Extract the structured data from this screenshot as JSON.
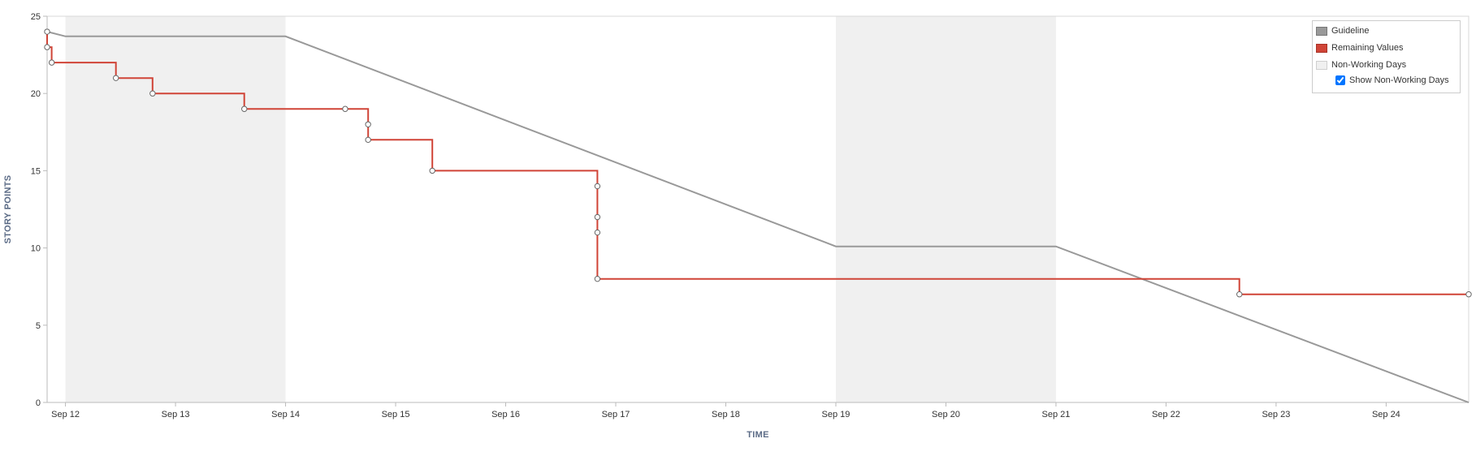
{
  "chart_data": {
    "type": "line",
    "xlabel": "TIME",
    "ylabel": "STORY POINTS",
    "ylim": [
      0,
      25
    ],
    "yticks": [
      0,
      5,
      10,
      15,
      20,
      25
    ],
    "xlim": [
      "2023-09-11T20:00",
      "2023-09-24T18:00"
    ],
    "xticks": [
      {
        "date": "2023-09-12",
        "label": "Sep 12"
      },
      {
        "date": "2023-09-13",
        "label": "Sep 13"
      },
      {
        "date": "2023-09-14",
        "label": "Sep 14"
      },
      {
        "date": "2023-09-15",
        "label": "Sep 15"
      },
      {
        "date": "2023-09-16",
        "label": "Sep 16"
      },
      {
        "date": "2023-09-17",
        "label": "Sep 17"
      },
      {
        "date": "2023-09-18",
        "label": "Sep 18"
      },
      {
        "date": "2023-09-19",
        "label": "Sep 19"
      },
      {
        "date": "2023-09-20",
        "label": "Sep 20"
      },
      {
        "date": "2023-09-21",
        "label": "Sep 21"
      },
      {
        "date": "2023-09-22",
        "label": "Sep 22"
      },
      {
        "date": "2023-09-23",
        "label": "Sep 23"
      },
      {
        "date": "2023-09-24",
        "label": "Sep 24"
      }
    ],
    "non_working_days": [
      {
        "start": "2023-09-12",
        "end": "2023-09-14"
      },
      {
        "start": "2023-09-19",
        "end": "2023-09-21"
      }
    ],
    "guideline": [
      {
        "t": "2023-09-11T20:00",
        "y": 24
      },
      {
        "t": "2023-09-12T00:00",
        "y": 23.7
      },
      {
        "t": "2023-09-14T00:00",
        "y": 23.7
      },
      {
        "t": "2023-09-19T00:00",
        "y": 10.1
      },
      {
        "t": "2023-09-21T00:00",
        "y": 10.1
      },
      {
        "t": "2023-09-24T18:00",
        "y": 0
      }
    ],
    "remaining_steps": [
      {
        "t": "2023-09-11T20:00",
        "y": 24
      },
      {
        "t": "2023-09-11T20:00",
        "y": 23
      },
      {
        "t": "2023-09-11T21:00",
        "y": 22
      },
      {
        "t": "2023-09-12T11:00",
        "y": 21
      },
      {
        "t": "2023-09-12T19:00",
        "y": 20
      },
      {
        "t": "2023-09-13T15:00",
        "y": 19
      },
      {
        "t": "2023-09-14T13:00",
        "y": 19
      },
      {
        "t": "2023-09-14T18:00",
        "y": 18
      },
      {
        "t": "2023-09-14T18:00",
        "y": 17
      },
      {
        "t": "2023-09-15T08:00",
        "y": 15
      },
      {
        "t": "2023-09-16T20:00",
        "y": 14
      },
      {
        "t": "2023-09-16T20:00",
        "y": 12
      },
      {
        "t": "2023-09-16T20:00",
        "y": 11
      },
      {
        "t": "2023-09-16T20:00",
        "y": 8
      },
      {
        "t": "2023-09-22T16:00",
        "y": 7
      },
      {
        "t": "2023-09-24T18:00",
        "y": 7
      }
    ],
    "series": [
      {
        "name": "Guideline",
        "color": "#999999"
      },
      {
        "name": "Remaining Values",
        "color": "#d04437"
      },
      {
        "name": "Non-Working Days",
        "color": "#f0f0f0"
      }
    ],
    "legend": {
      "position": "top-right",
      "checkbox_label": "Show Non-Working Days",
      "checkbox_checked": true
    },
    "grid": false
  }
}
